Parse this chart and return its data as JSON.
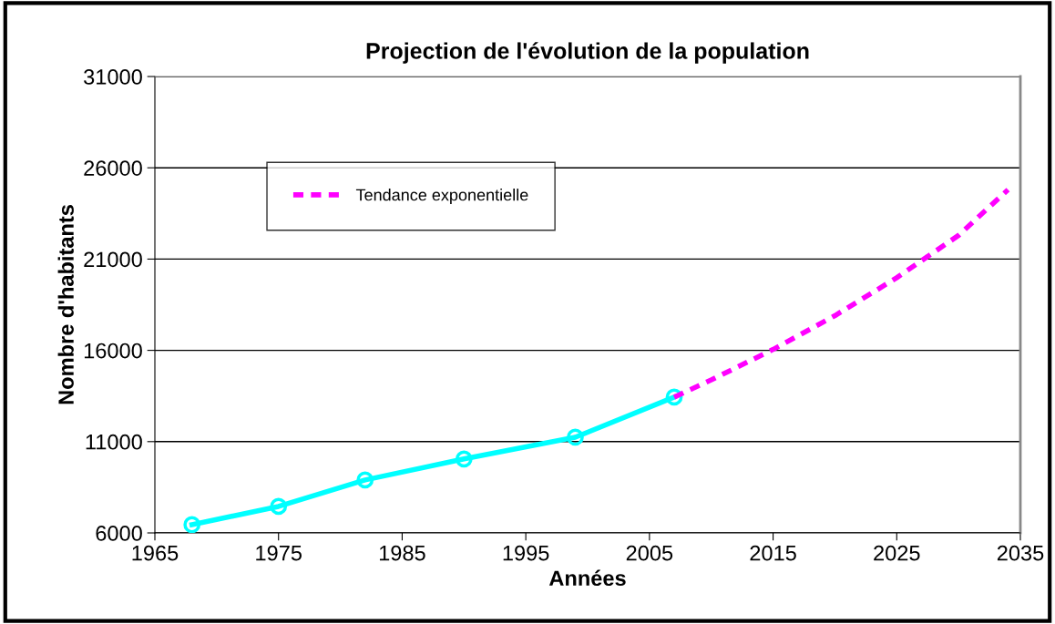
{
  "chart_data": {
    "type": "line",
    "title": "Projection de l'évolution de la population",
    "xlabel": "Années",
    "ylabel": "Nombre d'habitants",
    "xlim": [
      1965,
      2035
    ],
    "xticks": [
      1965,
      1975,
      1985,
      1995,
      2005,
      2015,
      2025,
      2035
    ],
    "ylim": [
      6000,
      31000
    ],
    "yticks": [
      6000,
      11000,
      16000,
      21000,
      26000,
      31000
    ],
    "grid": "y",
    "legend": "top left",
    "series": [
      {
        "color": "#00ffff",
        "marker": "circle",
        "line_style": "solid",
        "x": [
          1968,
          1975,
          1982,
          1990,
          1999,
          2007
        ],
        "values": [
          6450,
          7450,
          8900,
          10050,
          11240,
          13440
        ]
      },
      {
        "name": "Tendance exponentielle",
        "color": "#ff00ff",
        "marker": "none",
        "line_style": "dashed",
        "x": [
          2007,
          2010,
          2015,
          2020,
          2025,
          2030,
          2034
        ],
        "values": [
          13440,
          14380,
          16050,
          17900,
          19980,
          22300,
          24800
        ]
      }
    ]
  }
}
